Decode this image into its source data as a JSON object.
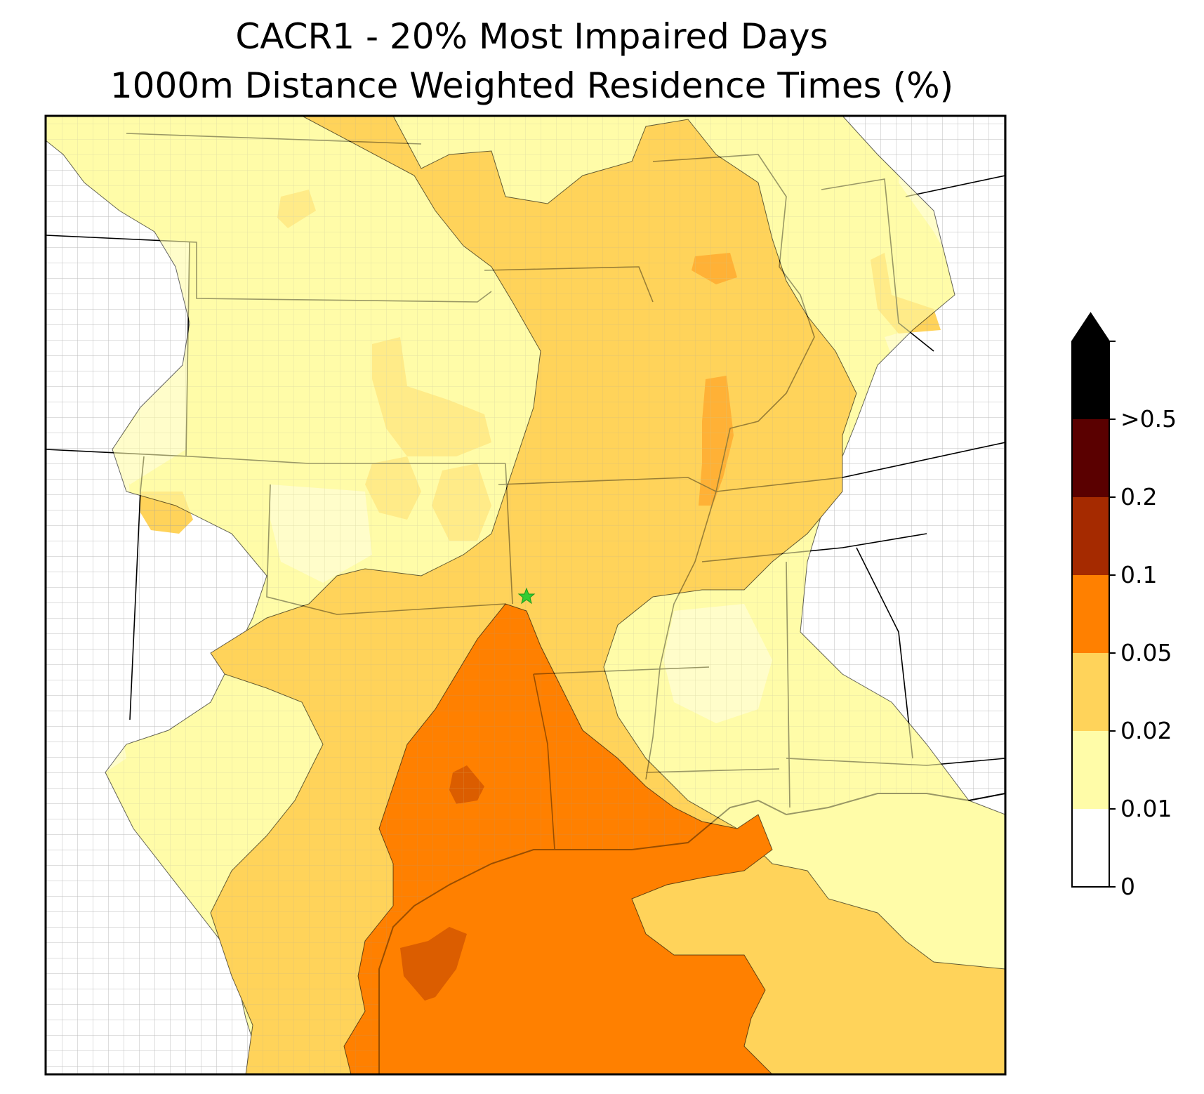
{
  "title_line1": "CACR1 - 20% Most Impaired Days",
  "title_line2": "1000m Distance Weighted Residence Times (%)",
  "site_marker": {
    "name": "CACR1",
    "symbol": "star",
    "color": "#33cc33"
  },
  "colorbar": {
    "extend": "max",
    "levels": [
      {
        "label": "0",
        "color": "#ffffff"
      },
      {
        "label": "0.01",
        "color": "#fffca8"
      },
      {
        "label": "0.02",
        "color": "#ffd35a"
      },
      {
        "label": "0.05",
        "color": "#ff8000"
      },
      {
        "label": "0.1",
        "color": "#a52a00"
      },
      {
        "label": "0.2",
        "color": "#5a0000"
      },
      {
        "label": ">0.5",
        "color": "#000000"
      }
    ]
  },
  "map_colors": {
    "lowest": "#fffca8",
    "mid": "#ffd35a",
    "high": "#ff8000",
    "very_high": "#a52a00",
    "outline": "#000000",
    "county_lines": "#a0a0a0"
  }
}
